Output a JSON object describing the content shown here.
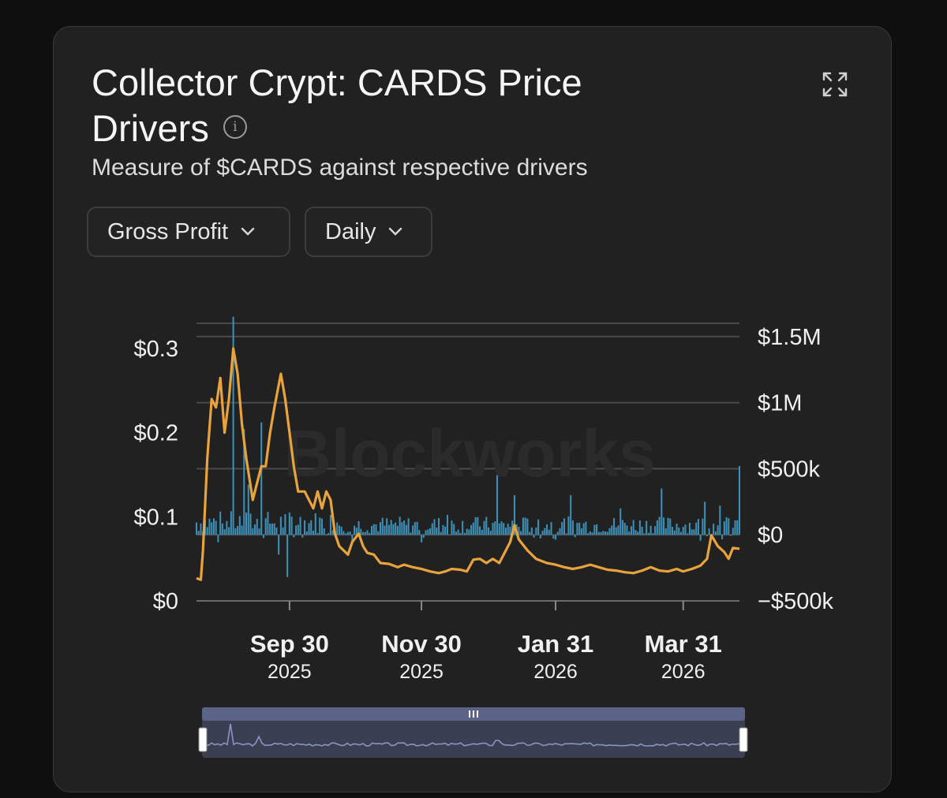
{
  "header": {
    "title": "Collector Crypt: CARDS Price Drivers",
    "subtitle": "Measure of $CARDS against respective drivers",
    "info_icon": "info-icon",
    "expand_icon": "expand-icon"
  },
  "controls": {
    "metric_selected": "Gross Profit",
    "interval_selected": "Daily"
  },
  "watermark": "Blockworks",
  "colors": {
    "price_line": "#e8a33d",
    "bars": "#3d8fb5",
    "grid": "#4a4a4a",
    "navigator": "#5b6486"
  },
  "chart_data": {
    "type": "bar+line",
    "x_start": "2025-08-18",
    "x_end": "2026-04-26",
    "x_ticks": [
      {
        "date": "2025-09-30",
        "label": "Sep 30",
        "year": "2025"
      },
      {
        "date": "2025-11-30",
        "label": "Nov 30",
        "year": "2025"
      },
      {
        "date": "2026-01-31",
        "label": "Jan 31",
        "year": "2026"
      },
      {
        "date": "2026-03-31",
        "label": "Mar 31",
        "year": "2026"
      }
    ],
    "y_left": {
      "ticks": [
        "$0",
        "$0.1",
        "$0.2",
        "$0.3"
      ],
      "tick_values": [
        0,
        0.1,
        0.2,
        0.3
      ],
      "ylim": [
        0,
        0.33
      ]
    },
    "y_right": {
      "ticks": [
        "−$500k",
        "$0",
        "$500k",
        "$1M",
        "$1.5M"
      ],
      "tick_values": [
        -500000,
        0,
        500000,
        1000000,
        1500000
      ],
      "ylim": [
        -500000,
        1600000
      ]
    },
    "series": [
      {
        "axis": "left",
        "kind": "line",
        "points": [
          [
            "2025-08-18",
            0.027
          ],
          [
            "2025-08-20",
            0.025
          ],
          [
            "2025-08-21",
            0.06
          ],
          [
            "2025-08-23",
            0.17
          ],
          [
            "2025-08-25",
            0.24
          ],
          [
            "2025-08-27",
            0.23
          ],
          [
            "2025-08-29",
            0.265
          ],
          [
            "2025-08-31",
            0.2
          ],
          [
            "2025-09-02",
            0.24
          ],
          [
            "2025-09-04",
            0.3
          ],
          [
            "2025-09-06",
            0.27
          ],
          [
            "2025-09-08",
            0.21
          ],
          [
            "2025-09-10",
            0.17
          ],
          [
            "2025-09-13",
            0.12
          ],
          [
            "2025-09-15",
            0.14
          ],
          [
            "2025-09-17",
            0.16
          ],
          [
            "2025-09-19",
            0.16
          ],
          [
            "2025-09-21",
            0.2
          ],
          [
            "2025-09-23",
            0.23
          ],
          [
            "2025-09-26",
            0.27
          ],
          [
            "2025-09-28",
            0.24
          ],
          [
            "2025-09-30",
            0.2
          ],
          [
            "2025-10-02",
            0.16
          ],
          [
            "2025-10-04",
            0.13
          ],
          [
            "2025-10-07",
            0.13
          ],
          [
            "2025-10-09",
            0.12
          ],
          [
            "2025-10-11",
            0.11
          ],
          [
            "2025-10-13",
            0.13
          ],
          [
            "2025-10-15",
            0.11
          ],
          [
            "2025-10-17",
            0.13
          ],
          [
            "2025-10-19",
            0.12
          ],
          [
            "2025-10-21",
            0.08
          ],
          [
            "2025-10-23",
            0.065
          ],
          [
            "2025-10-25",
            0.06
          ],
          [
            "2025-10-27",
            0.055
          ],
          [
            "2025-10-29",
            0.07
          ],
          [
            "2025-11-01",
            0.08
          ],
          [
            "2025-11-03",
            0.065
          ],
          [
            "2025-11-05",
            0.057
          ],
          [
            "2025-11-08",
            0.055
          ],
          [
            "2025-11-11",
            0.045
          ],
          [
            "2025-11-15",
            0.044
          ],
          [
            "2025-11-19",
            0.04
          ],
          [
            "2025-11-22",
            0.043
          ],
          [
            "2025-11-26",
            0.04
          ],
          [
            "2025-11-30",
            0.038
          ],
          [
            "2025-12-04",
            0.035
          ],
          [
            "2025-12-08",
            0.033
          ],
          [
            "2025-12-11",
            0.035
          ],
          [
            "2025-12-14",
            0.038
          ],
          [
            "2025-12-18",
            0.037
          ],
          [
            "2025-12-21",
            0.035
          ],
          [
            "2025-12-24",
            0.049
          ],
          [
            "2025-12-27",
            0.05
          ],
          [
            "2025-12-30",
            0.045
          ],
          [
            "2026-01-02",
            0.05
          ],
          [
            "2026-01-05",
            0.045
          ],
          [
            "2026-01-08",
            0.06
          ],
          [
            "2026-01-10",
            0.07
          ],
          [
            "2026-01-12",
            0.09
          ],
          [
            "2026-01-14",
            0.073
          ],
          [
            "2026-01-18",
            0.06
          ],
          [
            "2026-01-22",
            0.05
          ],
          [
            "2026-01-27",
            0.045
          ],
          [
            "2026-01-31",
            0.043
          ],
          [
            "2026-02-04",
            0.04
          ],
          [
            "2026-02-08",
            0.038
          ],
          [
            "2026-02-12",
            0.04
          ],
          [
            "2026-02-16",
            0.043
          ],
          [
            "2026-02-20",
            0.04
          ],
          [
            "2026-02-24",
            0.037
          ],
          [
            "2026-02-28",
            0.036
          ],
          [
            "2026-03-04",
            0.034
          ],
          [
            "2026-03-08",
            0.033
          ],
          [
            "2026-03-12",
            0.036
          ],
          [
            "2026-03-16",
            0.04
          ],
          [
            "2026-03-20",
            0.036
          ],
          [
            "2026-03-24",
            0.035
          ],
          [
            "2026-03-28",
            0.038
          ],
          [
            "2026-03-31",
            0.035
          ],
          [
            "2026-04-04",
            0.038
          ],
          [
            "2026-04-08",
            0.042
          ],
          [
            "2026-04-11",
            0.05
          ],
          [
            "2026-04-13",
            0.078
          ],
          [
            "2026-04-16",
            0.065
          ],
          [
            "2026-04-19",
            0.058
          ],
          [
            "2026-04-21",
            0.05
          ],
          [
            "2026-04-23",
            0.063
          ],
          [
            "2026-04-26",
            0.062
          ]
        ]
      },
      {
        "axis": "right",
        "kind": "bar",
        "spikes": [
          [
            "2025-09-04",
            1650000
          ],
          [
            "2025-09-09",
            800000
          ],
          [
            "2025-09-17",
            850000
          ],
          [
            "2025-09-11",
            380000
          ],
          [
            "2025-09-29",
            -320000
          ],
          [
            "2025-09-25",
            -150000
          ],
          [
            "2026-01-04",
            450000
          ],
          [
            "2026-01-12",
            300000
          ],
          [
            "2026-02-07",
            300000
          ],
          [
            "2026-03-21",
            350000
          ],
          [
            "2026-04-10",
            250000
          ],
          [
            "2026-04-26",
            520000
          ],
          [
            "2026-04-17",
            220000
          ],
          [
            "2026-03-02",
            200000
          ],
          [
            "2025-12-12",
            150000
          ]
        ]
      }
    ]
  }
}
